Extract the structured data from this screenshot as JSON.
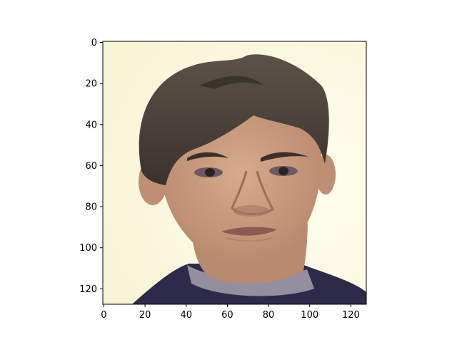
{
  "figure": {
    "description_kind": "image-plot",
    "x_axis": {
      "range": [
        0,
        127
      ],
      "ticks": [
        {
          "value": 0,
          "label": "0"
        },
        {
          "value": 20,
          "label": "20"
        },
        {
          "value": 40,
          "label": "40"
        },
        {
          "value": 60,
          "label": "60"
        },
        {
          "value": 80,
          "label": "80"
        },
        {
          "value": 100,
          "label": "100"
        },
        {
          "value": 120,
          "label": "120"
        }
      ]
    },
    "y_axis": {
      "range": [
        0,
        127
      ],
      "inverted": true,
      "ticks": [
        {
          "value": 0,
          "label": "0"
        },
        {
          "value": 20,
          "label": "20"
        },
        {
          "value": 40,
          "label": "40"
        },
        {
          "value": 60,
          "label": "60"
        },
        {
          "value": 80,
          "label": "80"
        },
        {
          "value": 100,
          "label": "100"
        },
        {
          "value": 120,
          "label": "120"
        }
      ]
    },
    "colors": {
      "background": "#fdfbe6",
      "hair": "#4a4038",
      "skin": "#c8987c",
      "shirt": "#2e2a4a",
      "axis": "#000000"
    }
  }
}
